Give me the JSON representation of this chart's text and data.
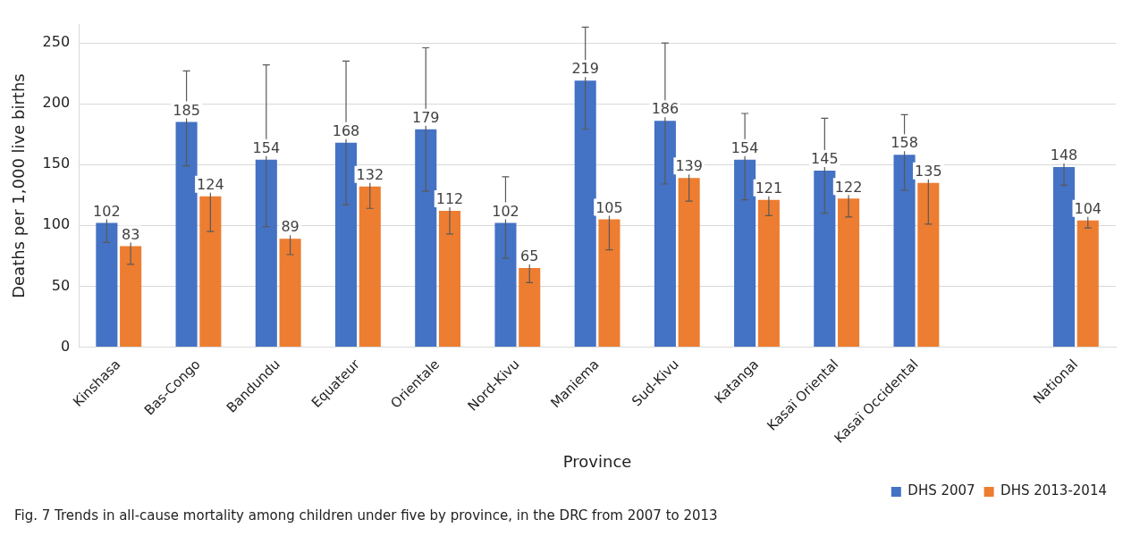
{
  "chart_data": {
    "type": "bar",
    "categories": [
      "Kinshasa",
      "Bas-Congo",
      "Bandundu",
      "Equateur",
      "Orientale",
      "Nord-Kivu",
      "Maniema",
      "Sud-Kivu",
      "Katanga",
      "Kasaï Oriental",
      "Kasaï Occidental",
      null,
      "National"
    ],
    "series": [
      {
        "name": "DHS 2007",
        "color": "#4472c4",
        "values": [
          102,
          185,
          154,
          168,
          179,
          102,
          219,
          186,
          154,
          145,
          158,
          null,
          148
        ],
        "errors": [
          [
            86,
            118
          ],
          [
            149,
            227
          ],
          [
            99,
            232
          ],
          [
            117,
            235
          ],
          [
            128,
            246
          ],
          [
            73,
            140
          ],
          [
            179,
            263
          ],
          [
            134,
            250
          ],
          [
            121,
            192
          ],
          [
            110,
            188
          ],
          [
            129,
            191
          ],
          null,
          [
            133,
            164
          ]
        ]
      },
      {
        "name": "DHS 2013-2014",
        "color": "#ed7d31",
        "values": [
          83,
          124,
          89,
          132,
          112,
          65,
          105,
          139,
          121,
          122,
          135,
          null,
          104
        ],
        "errors": [
          [
            68,
            98
          ],
          [
            95,
            136
          ],
          [
            76,
            104
          ],
          [
            114,
            142
          ],
          [
            93,
            125
          ],
          [
            53,
            79
          ],
          [
            80,
            119
          ],
          [
            120,
            150
          ],
          [
            108,
            132
          ],
          [
            107,
            133
          ],
          [
            101,
            145
          ],
          null,
          [
            98,
            114
          ]
        ]
      }
    ],
    "xlabel": "Province",
    "ylabel": "Deaths per 1,000 live births",
    "ylim": [
      0,
      265
    ],
    "yticks": [
      0,
      50,
      100,
      150,
      200,
      250
    ],
    "grid": "y",
    "legend": "bottom right",
    "data_labels": true,
    "annotations": [
      "Fig. 7  Trends in all-cause mortality among children under five by province, in the DRC from 2007 to 2013"
    ]
  }
}
